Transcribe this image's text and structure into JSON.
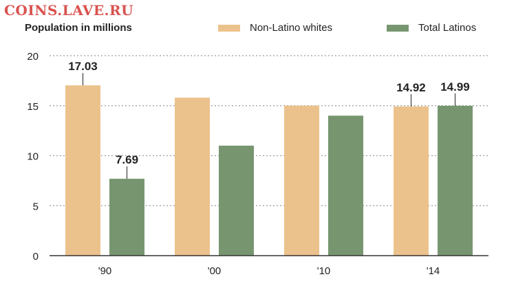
{
  "watermark": "COINS.LAVE.RU",
  "chart_data": {
    "type": "bar",
    "ylabel": "Population in millions",
    "categories": [
      "'90",
      "'00",
      "'10",
      "'14"
    ],
    "ylim": [
      0,
      20
    ],
    "yticks": [
      0,
      5,
      10,
      15,
      20
    ],
    "grid": true,
    "legend_position": "top",
    "series": [
      {
        "name": "Non-Latino whites",
        "color": "#ecc28c",
        "values": [
          17.03,
          15.8,
          15.0,
          14.92
        ],
        "labels": [
          "17.03",
          "",
          "",
          "14.92"
        ]
      },
      {
        "name": "Total Latinos",
        "color": "#779670",
        "values": [
          7.69,
          11.0,
          14.0,
          14.99
        ],
        "labels": [
          "7.69",
          "",
          "",
          "14.99"
        ]
      }
    ]
  }
}
